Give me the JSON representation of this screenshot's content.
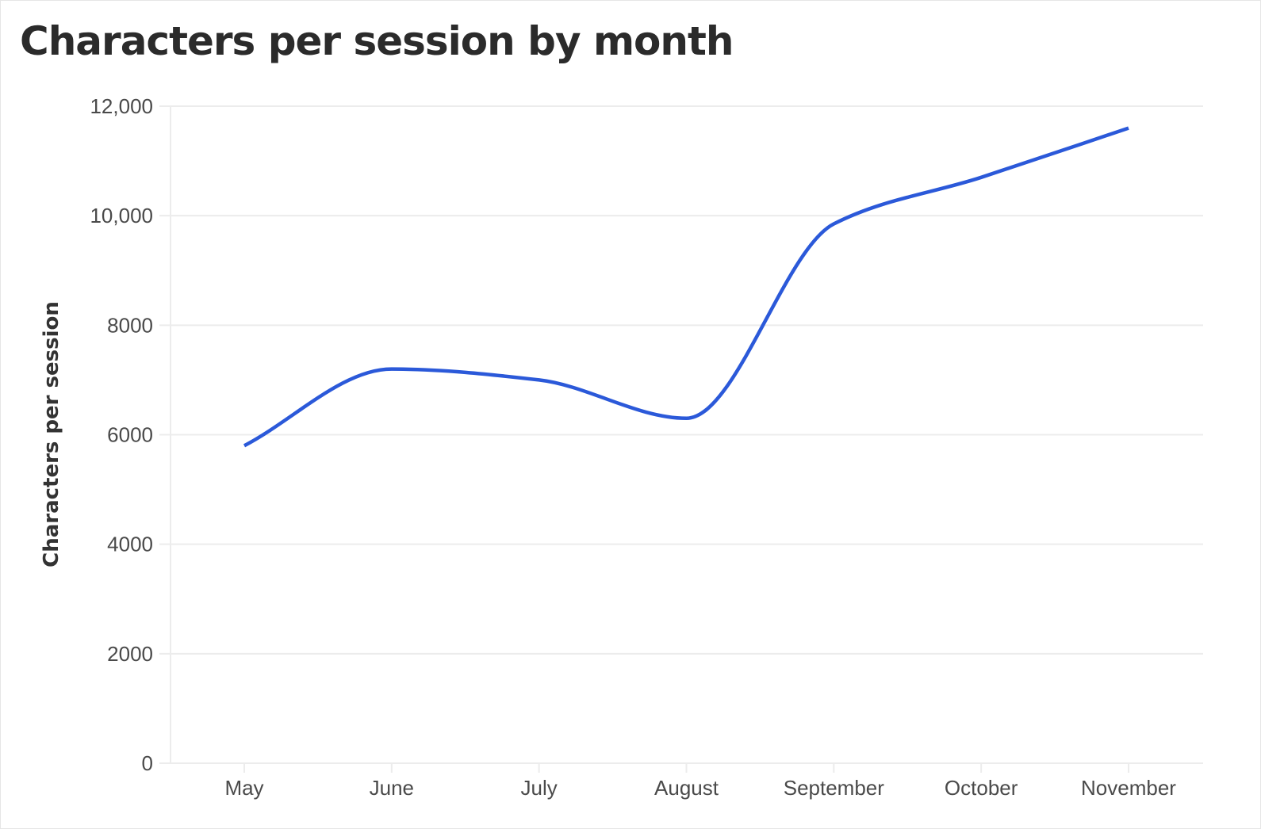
{
  "chart_data": {
    "type": "line",
    "title": "Characters per session by month",
    "xlabel": "",
    "ylabel": "Characters per session",
    "categories": [
      "May",
      "June",
      "July",
      "August",
      "September",
      "October",
      "November"
    ],
    "series": [
      {
        "values": [
          5800,
          7200,
          7000,
          6300,
          9850,
          10700,
          11600
        ]
      }
    ],
    "ylim": [
      0,
      12000
    ],
    "yticks": [
      0,
      2000,
      4000,
      6000,
      8000,
      10000,
      12000
    ],
    "ytick_labels": [
      "0",
      "2000",
      "4000",
      "6000",
      "8000",
      "10,000",
      "12,000"
    ],
    "grid": true,
    "smooth": true,
    "line_color": "#2b59d9",
    "grid_color": "#ececec",
    "legend": "none"
  }
}
